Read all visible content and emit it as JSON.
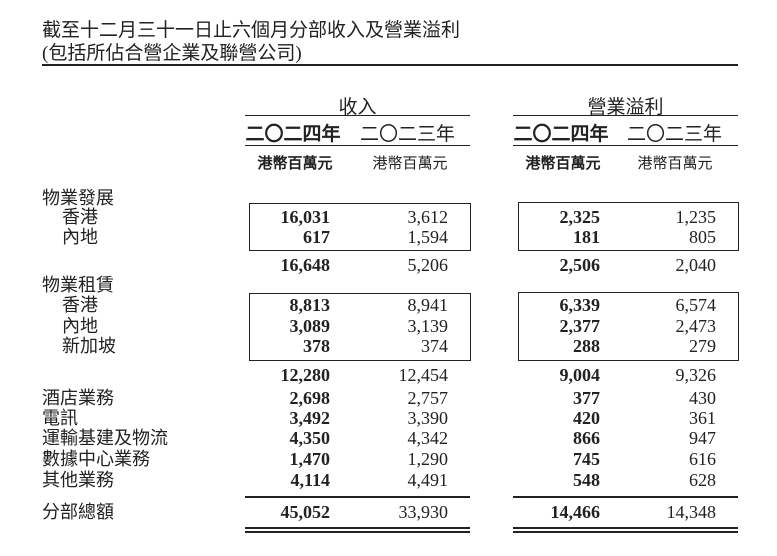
{
  "title": {
    "line1": "截至十二月三十一日止六個月分部收入及營業溢利",
    "line2": "(包括所佔合營企業及聯營公司)"
  },
  "columns": {
    "groups": [
      "收入",
      "營業溢利"
    ],
    "years": [
      "二〇二四年",
      "二〇二三年"
    ],
    "unit": "港幣百萬元"
  },
  "sections": {
    "property_development": {
      "label": "物業發展",
      "rows": [
        {
          "label": "香港",
          "values": [
            "16,031",
            "3,612",
            "2,325",
            "1,235"
          ]
        },
        {
          "label": "內地",
          "values": [
            "617",
            "1,594",
            "181",
            "805"
          ]
        }
      ],
      "subtotal": [
        "16,648",
        "5,206",
        "2,506",
        "2,040"
      ]
    },
    "property_investment": {
      "label": "物業租賃",
      "rows": [
        {
          "label": "香港",
          "values": [
            "8,813",
            "8,941",
            "6,339",
            "6,574"
          ]
        },
        {
          "label": "內地",
          "values": [
            "3,089",
            "3,139",
            "2,377",
            "2,473"
          ]
        },
        {
          "label": "新加坡",
          "values": [
            "378",
            "374",
            "288",
            "279"
          ]
        }
      ],
      "subtotal": [
        "12,280",
        "12,454",
        "9,004",
        "9,326"
      ]
    },
    "others": [
      {
        "label": "酒店業務",
        "values": [
          "2,698",
          "2,757",
          "377",
          "430"
        ]
      },
      {
        "label": "電訊",
        "values": [
          "3,492",
          "3,390",
          "420",
          "361"
        ]
      },
      {
        "label": "運輸基建及物流",
        "values": [
          "4,350",
          "4,342",
          "866",
          "947"
        ]
      },
      {
        "label": "數據中心業務",
        "values": [
          "1,470",
          "1,290",
          "745",
          "616"
        ]
      },
      {
        "label": "其他業務",
        "values": [
          "4,114",
          "4,491",
          "548",
          "628"
        ]
      }
    ],
    "total": {
      "label": "分部總額",
      "values": [
        "45,052",
        "33,930",
        "14,466",
        "14,348"
      ]
    }
  }
}
